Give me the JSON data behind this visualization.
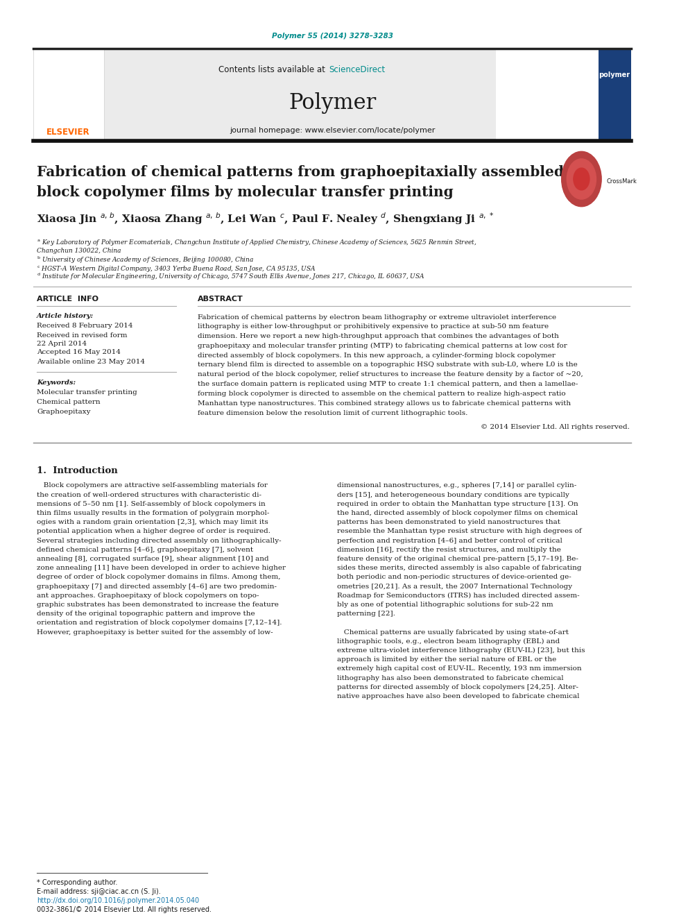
{
  "title_line1": "Fabrication of chemical patterns from graphoepitaxially assembled",
  "title_line2": "block copolymer films by molecular transfer printing",
  "journal_ref": "Polymer 55 (2014) 3278–3283",
  "journal_name": "Polymer",
  "journal_homepage": "journal homepage: www.elsevier.com/locate/polymer",
  "contents_line": "Contents lists available at ",
  "science_direct": "ScienceDirect",
  "article_info_title": "ARTICLE  INFO",
  "abstract_title": "ABSTRACT",
  "article_history_label": "Article history:",
  "received": "Received 8 February 2014",
  "revised1": "Received in revised form",
  "revised2": "22 April 2014",
  "accepted": "Accepted 16 May 2014",
  "available": "Available online 23 May 2014",
  "keywords_label": "Keywords:",
  "keywords": [
    "Molecular transfer printing",
    "Chemical pattern",
    "Graphoepitaxy"
  ],
  "copyright": "© 2014 Elsevier Ltd. All rights reserved.",
  "intro_title": "1.  Introduction",
  "footnote_corresponding": "* Corresponding author.",
  "footnote_email": "E-mail address: sji@ciac.ac.cn (S. Ji).",
  "footnote_doi": "http://dx.doi.org/10.1016/j.polymer.2014.05.040",
  "footnote_issn": "0032-3861/© 2014 Elsevier Ltd. All rights reserved.",
  "bg_color": "#ffffff",
  "header_bg": "#ebebeb",
  "teal_color": "#008B8B",
  "dark_color": "#1a1a1a",
  "link_color": "#1a7aad",
  "elsevier_orange": "#FF6600",
  "abstract_lines": [
    "Fabrication of chemical patterns by electron beam lithography or extreme ultraviolet interference",
    "lithography is either low-throughput or prohibitively expensive to practice at sub-50 nm feature",
    "dimension. Here we report a new high-throughput approach that combines the advantages of both",
    "graphoepitaxy and molecular transfer printing (MTP) to fabricating chemical patterns at low cost for",
    "directed assembly of block copolymers. In this new approach, a cylinder-forming block copolymer",
    "ternary blend film is directed to assemble on a topographic HSQ substrate with sub-L0, where L0 is the",
    "natural period of the block copolymer, relief structures to increase the feature density by a factor of ~20,",
    "the surface domain pattern is replicated using MTP to create 1:1 chemical pattern, and then a lamellae-",
    "forming block copolymer is directed to assemble on the chemical pattern to realize high-aspect ratio",
    "Manhattan type nanostructures. This combined strategy allows us to fabricate chemical patterns with",
    "feature dimension below the resolution limit of current lithographic tools."
  ],
  "intro_left_lines": [
    "   Block copolymers are attractive self-assembling materials for",
    "the creation of well-ordered structures with characteristic di-",
    "mensions of 5–50 nm [1]. Self-assembly of block copolymers in",
    "thin films usually results in the formation of polygrain morphol-",
    "ogies with a random grain orientation [2,3], which may limit its",
    "potential application when a higher degree of order is required.",
    "Several strategies including directed assembly on lithographically-",
    "defined chemical patterns [4–6], graphoepitaxy [7], solvent",
    "annealing [8], corrugated surface [9], shear alignment [10] and",
    "zone annealing [11] have been developed in order to achieve higher",
    "degree of order of block copolymer domains in films. Among them,",
    "graphoepitaxy [7] and directed assembly [4–6] are two predomin-",
    "ant approaches. Graphoepitaxy of block copolymers on topo-",
    "graphic substrates has been demonstrated to increase the feature",
    "density of the original topographic pattern and improve the",
    "orientation and registration of block copolymer domains [7,12–14].",
    "However, graphoepitaxy is better suited for the assembly of low-"
  ],
  "intro_right_lines": [
    "dimensional nanostructures, e.g., spheres [7,14] or parallel cylin-",
    "ders [15], and heterogeneous boundary conditions are typically",
    "required in order to obtain the Manhattan type structure [13]. On",
    "the hand, directed assembly of block copolymer films on chemical",
    "patterns has been demonstrated to yield nanostructures that",
    "resemble the Manhattan type resist structure with high degrees of",
    "perfection and registration [4–6] and better control of critical",
    "dimension [16], rectify the resist structures, and multiply the",
    "feature density of the original chemical pre-pattern [5,17–19]. Be-",
    "sides these merits, directed assembly is also capable of fabricating",
    "both periodic and non-periodic structures of device-oriented ge-",
    "ometries [20,21]. As a result, the 2007 International Technology",
    "Roadmap for Semiconductors (ITRS) has included directed assem-",
    "bly as one of potential lithographic solutions for sub-22 nm",
    "patterning [22].",
    "",
    "   Chemical patterns are usually fabricated by using state-of-art",
    "lithographic tools, e.g., electron beam lithography (EBL) and",
    "extreme ultra-violet interference lithography (EUV-IL) [23], but this",
    "approach is limited by either the serial nature of EBL or the",
    "extremely high capital cost of EUV-IL. Recently, 193 nm immersion",
    "lithography has also been demonstrated to fabricate chemical",
    "patterns for directed assembly of block copolymers [24,25]. Alter-",
    "native approaches have also been developed to fabricate chemical"
  ]
}
